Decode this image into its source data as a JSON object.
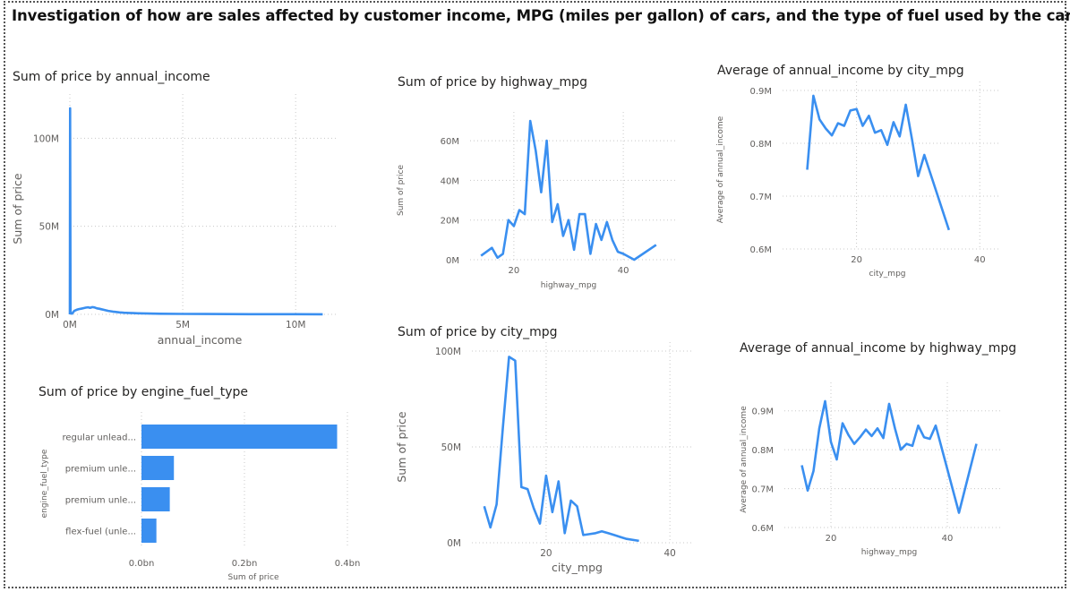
{
  "page_title": "Investigation of how are sales affected by customer income, MPG (miles per gallon) of cars, and the type of fuel used by the car.",
  "colors": {
    "series": "#3a8ff0",
    "grid": "#c8c8c8",
    "axis_text": "#605e5c",
    "border": "#555555"
  },
  "chart_data": [
    {
      "id": "price_by_income",
      "type": "line",
      "title": "Sum of price by annual_income",
      "xlabel": "annual_income",
      "ylabel": "Sum of price",
      "xlim": [
        0,
        11500000
      ],
      "ylim": [
        0,
        120000000
      ],
      "xticks": [
        0,
        5000000,
        10000000
      ],
      "xtick_labels": [
        "0M",
        "5M",
        "10M"
      ],
      "yticks": [
        0,
        50000000,
        100000000
      ],
      "ytick_labels": [
        "0M",
        "50M",
        "100M"
      ],
      "grid": true,
      "x": [
        0,
        10000,
        30000,
        60000,
        100000,
        150000,
        200000,
        300000,
        400000,
        500000,
        600000,
        700000,
        800000,
        900000,
        1000000,
        1100000,
        1200000,
        1300000,
        1400000,
        1500000,
        1600000,
        1700000,
        1800000,
        1900000,
        2000000,
        2200000,
        2400000,
        2600000,
        2800000,
        3000000,
        3500000,
        4000000,
        5000000,
        6000000,
        7000000,
        8000000,
        9000000,
        10000000,
        11200000
      ],
      "y": [
        0,
        117000000,
        1000000,
        500000,
        400000,
        1200000,
        2000000,
        2600000,
        3000000,
        3200000,
        3500000,
        3800000,
        4000000,
        3700000,
        4100000,
        3900000,
        3400000,
        3200000,
        2900000,
        2600000,
        2300000,
        2000000,
        1800000,
        1600000,
        1400000,
        1100000,
        900000,
        800000,
        700000,
        600000,
        450000,
        350000,
        250000,
        200000,
        150000,
        120000,
        100000,
        80000,
        60000
      ]
    },
    {
      "id": "price_by_fuel",
      "type": "bar",
      "orientation": "horizontal",
      "title": "Sum of price by engine_fuel_type",
      "xlabel": "Sum of price",
      "ylabel": "engine_fuel_type",
      "xlim": [
        0,
        400000000
      ],
      "xticks": [
        0,
        200000000,
        400000000
      ],
      "xtick_labels": [
        "0.0bn",
        "0.2bn",
        "0.4bn"
      ],
      "categories": [
        "regular unlead...",
        "premium unle...",
        "premium unle...",
        "flex-fuel (unle..."
      ],
      "values": [
        380000000,
        63000000,
        55000000,
        29000000
      ],
      "grid": true
    },
    {
      "id": "price_by_highway_mpg",
      "type": "line",
      "title": "Sum of price by highway_mpg",
      "xlabel": "highway_mpg",
      "ylabel": "Sum of price",
      "xlim": [
        12,
        48
      ],
      "ylim": [
        0,
        70000000
      ],
      "xticks": [
        20,
        40
      ],
      "xtick_labels": [
        "20",
        "40"
      ],
      "yticks": [
        0,
        20000000,
        40000000,
        60000000
      ],
      "ytick_labels": [
        "0M",
        "20M",
        "40M",
        "60M"
      ],
      "grid": true,
      "x": [
        14,
        16,
        17,
        18,
        19,
        20,
        21,
        22,
        23,
        24,
        25,
        26,
        27,
        28,
        29,
        30,
        31,
        32,
        33,
        34,
        35,
        36,
        37,
        38,
        39,
        40,
        42,
        46
      ],
      "y": [
        2000000,
        6000000,
        1000000,
        3000000,
        20000000,
        17000000,
        25000000,
        23000000,
        70000000,
        55000000,
        34000000,
        60000000,
        19000000,
        28000000,
        12000000,
        20000000,
        5000000,
        23000000,
        23000000,
        3000000,
        18000000,
        10000000,
        19000000,
        10000000,
        4000000,
        3000000,
        0,
        7500000
      ]
    },
    {
      "id": "price_by_city_mpg",
      "type": "line",
      "title": "Sum of price by city_mpg",
      "xlabel": "city_mpg",
      "ylabel": "Sum of price",
      "xlim": [
        8,
        42
      ],
      "ylim": [
        0,
        100000000
      ],
      "xticks": [
        20,
        40
      ],
      "xtick_labels": [
        "20",
        "40"
      ],
      "yticks": [
        0,
        50000000,
        100000000
      ],
      "ytick_labels": [
        "0M",
        "50M",
        "100M"
      ],
      "grid": true,
      "x": [
        10,
        11,
        12,
        13,
        14,
        15,
        16,
        17,
        18,
        19,
        20,
        21,
        22,
        23,
        24,
        25,
        26,
        27,
        28,
        29,
        30,
        31,
        32,
        33,
        35
      ],
      "y": [
        19000000,
        8000000,
        20000000,
        60000000,
        97000000,
        95000000,
        29000000,
        28000000,
        18000000,
        10000000,
        35000000,
        16000000,
        32000000,
        5000000,
        22000000,
        19000000,
        4000000,
        4500000,
        5000000,
        6000000,
        5000000,
        4000000,
        3000000,
        2000000,
        1000000
      ]
    },
    {
      "id": "income_by_city_mpg",
      "type": "line",
      "title": "Average of annual_income by city_mpg",
      "xlabel": "city_mpg",
      "ylabel": "Average of annual_income",
      "xlim": [
        8,
        42
      ],
      "ylim": [
        600000,
        900000
      ],
      "xticks": [
        20,
        40
      ],
      "xtick_labels": [
        "20",
        "40"
      ],
      "yticks": [
        600000,
        700000,
        800000,
        900000
      ],
      "ytick_labels": [
        "0.6M",
        "0.7M",
        "0.8M",
        "0.9M"
      ],
      "grid": true,
      "x": [
        12,
        13,
        14,
        15,
        16,
        17,
        18,
        19,
        20,
        21,
        22,
        23,
        24,
        25,
        26,
        27,
        28,
        29,
        30,
        31,
        35
      ],
      "y": [
        750000,
        890000,
        845000,
        828000,
        815000,
        838000,
        833000,
        862000,
        865000,
        833000,
        852000,
        820000,
        825000,
        797000,
        840000,
        813000,
        873000,
        808000,
        738000,
        778000,
        636000
      ]
    },
    {
      "id": "income_by_highway_mpg",
      "type": "line",
      "title": "Average of annual_income by highway_mpg",
      "xlabel": "highway_mpg",
      "ylabel": "Average of annual_income",
      "xlim": [
        12,
        48
      ],
      "ylim": [
        600000,
        950000
      ],
      "xticks": [
        20,
        40
      ],
      "xtick_labels": [
        "20",
        "40"
      ],
      "yticks": [
        600000,
        700000,
        800000,
        900000
      ],
      "ytick_labels": [
        "0.6M",
        "0.7M",
        "0.8M",
        "0.9M"
      ],
      "grid": true,
      "x": [
        15,
        16,
        17,
        18,
        19,
        20,
        21,
        22,
        23,
        24,
        25,
        26,
        27,
        28,
        29,
        30,
        31,
        32,
        33,
        34,
        35,
        36,
        37,
        38,
        42,
        45
      ],
      "y": [
        760000,
        695000,
        745000,
        855000,
        925000,
        820000,
        775000,
        868000,
        838000,
        815000,
        832000,
        852000,
        835000,
        855000,
        830000,
        918000,
        855000,
        800000,
        815000,
        810000,
        862000,
        832000,
        828000,
        862000,
        638000,
        815000
      ]
    }
  ]
}
